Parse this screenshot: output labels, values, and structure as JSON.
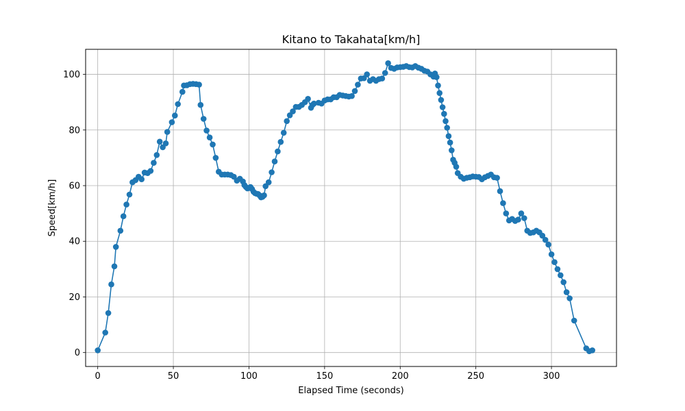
{
  "chart_data": {
    "type": "line",
    "title": "Kitano to Takahata[km/h]",
    "xlabel": "Elapsed Time (seconds)",
    "ylabel": "Speed[km/h]",
    "xlim": [
      -8,
      343
    ],
    "ylim": [
      -5,
      109
    ],
    "xticks": [
      0,
      50,
      100,
      150,
      200,
      250,
      300
    ],
    "yticks": [
      0,
      20,
      40,
      60,
      80,
      100
    ],
    "grid": true,
    "color": "#1f77b4",
    "marker": "circle",
    "series": [
      {
        "x": [
          0,
          5,
          7,
          9,
          11,
          12,
          15,
          17,
          19,
          21,
          23,
          25,
          27,
          29,
          31,
          33,
          35,
          37,
          39,
          41,
          43,
          45,
          46,
          49,
          51,
          53,
          56,
          57,
          59,
          61,
          63,
          65,
          67,
          68,
          70,
          72,
          74,
          76,
          78,
          80,
          82,
          84,
          86,
          88,
          90,
          92,
          94,
          96,
          97,
          98,
          99,
          100,
          101,
          102,
          103,
          104,
          105,
          106,
          107,
          108,
          109,
          110,
          111,
          113,
          115,
          117,
          119,
          121,
          123,
          125,
          127,
          129,
          131,
          133,
          135,
          137,
          139,
          141,
          142,
          143,
          146,
          148,
          150,
          152,
          154,
          156,
          158,
          160,
          162,
          164,
          166,
          168,
          170,
          172,
          174,
          176,
          178,
          180,
          182,
          184,
          186,
          188,
          190,
          192,
          194,
          196,
          198,
          200,
          202,
          204,
          206,
          208,
          210,
          212,
          214,
          216,
          218,
          220,
          222,
          223,
          224,
          225,
          226,
          227,
          228,
          229,
          230,
          231,
          232,
          233,
          234,
          235,
          236,
          237,
          238,
          240,
          242,
          244,
          246,
          248,
          250,
          252,
          254,
          256,
          258,
          260,
          262,
          264,
          266,
          268,
          270,
          272,
          274,
          276,
          278,
          280,
          282,
          284,
          286,
          288,
          290,
          292,
          294,
          296,
          298,
          300,
          302,
          304,
          306,
          308,
          310,
          312,
          315,
          323,
          325,
          327
        ],
        "y": [
          0.8,
          7.2,
          14.2,
          24.5,
          31.0,
          38.0,
          43.8,
          49.0,
          53.2,
          56.8,
          61.2,
          62.0,
          63.2,
          62.3,
          64.7,
          64.5,
          65.3,
          68.2,
          71.0,
          75.8,
          73.8,
          75.2,
          79.3,
          82.8,
          85.2,
          89.3,
          93.7,
          96.0,
          96.1,
          96.5,
          96.6,
          96.5,
          96.3,
          89.0,
          84.0,
          79.8,
          77.3,
          74.8,
          70.0,
          65.0,
          64.0,
          64.0,
          64.0,
          63.8,
          63.2,
          61.8,
          62.5,
          61.5,
          60.2,
          59.5,
          59.0,
          59.2,
          59.5,
          58.8,
          57.8,
          57.3,
          57.1,
          57.0,
          56.5,
          55.8,
          56.0,
          56.5,
          59.8,
          61.2,
          64.8,
          68.7,
          72.3,
          75.7,
          79.0,
          83.2,
          85.3,
          86.7,
          88.3,
          88.3,
          89.0,
          90.0,
          91.2,
          88.0,
          89.0,
          89.5,
          89.8,
          89.5,
          90.6,
          91.0,
          91.0,
          91.8,
          91.8,
          92.6,
          92.4,
          92.2,
          92.0,
          92.2,
          94.0,
          96.3,
          98.5,
          98.6,
          100.0,
          97.7,
          98.3,
          97.7,
          98.3,
          98.5,
          100.5,
          104.0,
          102.3,
          102.0,
          102.5,
          102.6,
          102.7,
          103.0,
          102.6,
          102.5,
          103.0,
          102.4,
          102.0,
          101.3,
          101.0,
          100.0,
          99.2,
          100.3,
          99.0,
          96.0,
          93.3,
          90.8,
          88.2,
          85.8,
          83.2,
          80.8,
          77.8,
          75.5,
          72.7,
          69.3,
          68.2,
          66.8,
          64.5,
          63.2,
          62.5,
          62.8,
          63.0,
          63.3,
          63.2,
          63.1,
          62.3,
          63.0,
          63.5,
          64.0,
          63.0,
          62.8,
          58.0,
          53.7,
          50.0,
          47.5,
          48.0,
          47.3,
          47.8,
          50.0,
          48.3,
          43.8,
          43.0,
          43.2,
          43.8,
          43.2,
          42.0,
          40.5,
          38.8,
          35.3,
          32.5,
          30.0,
          27.8,
          25.3,
          21.7,
          19.5,
          11.5,
          1.5,
          0.5,
          0.8
        ]
      }
    ]
  }
}
